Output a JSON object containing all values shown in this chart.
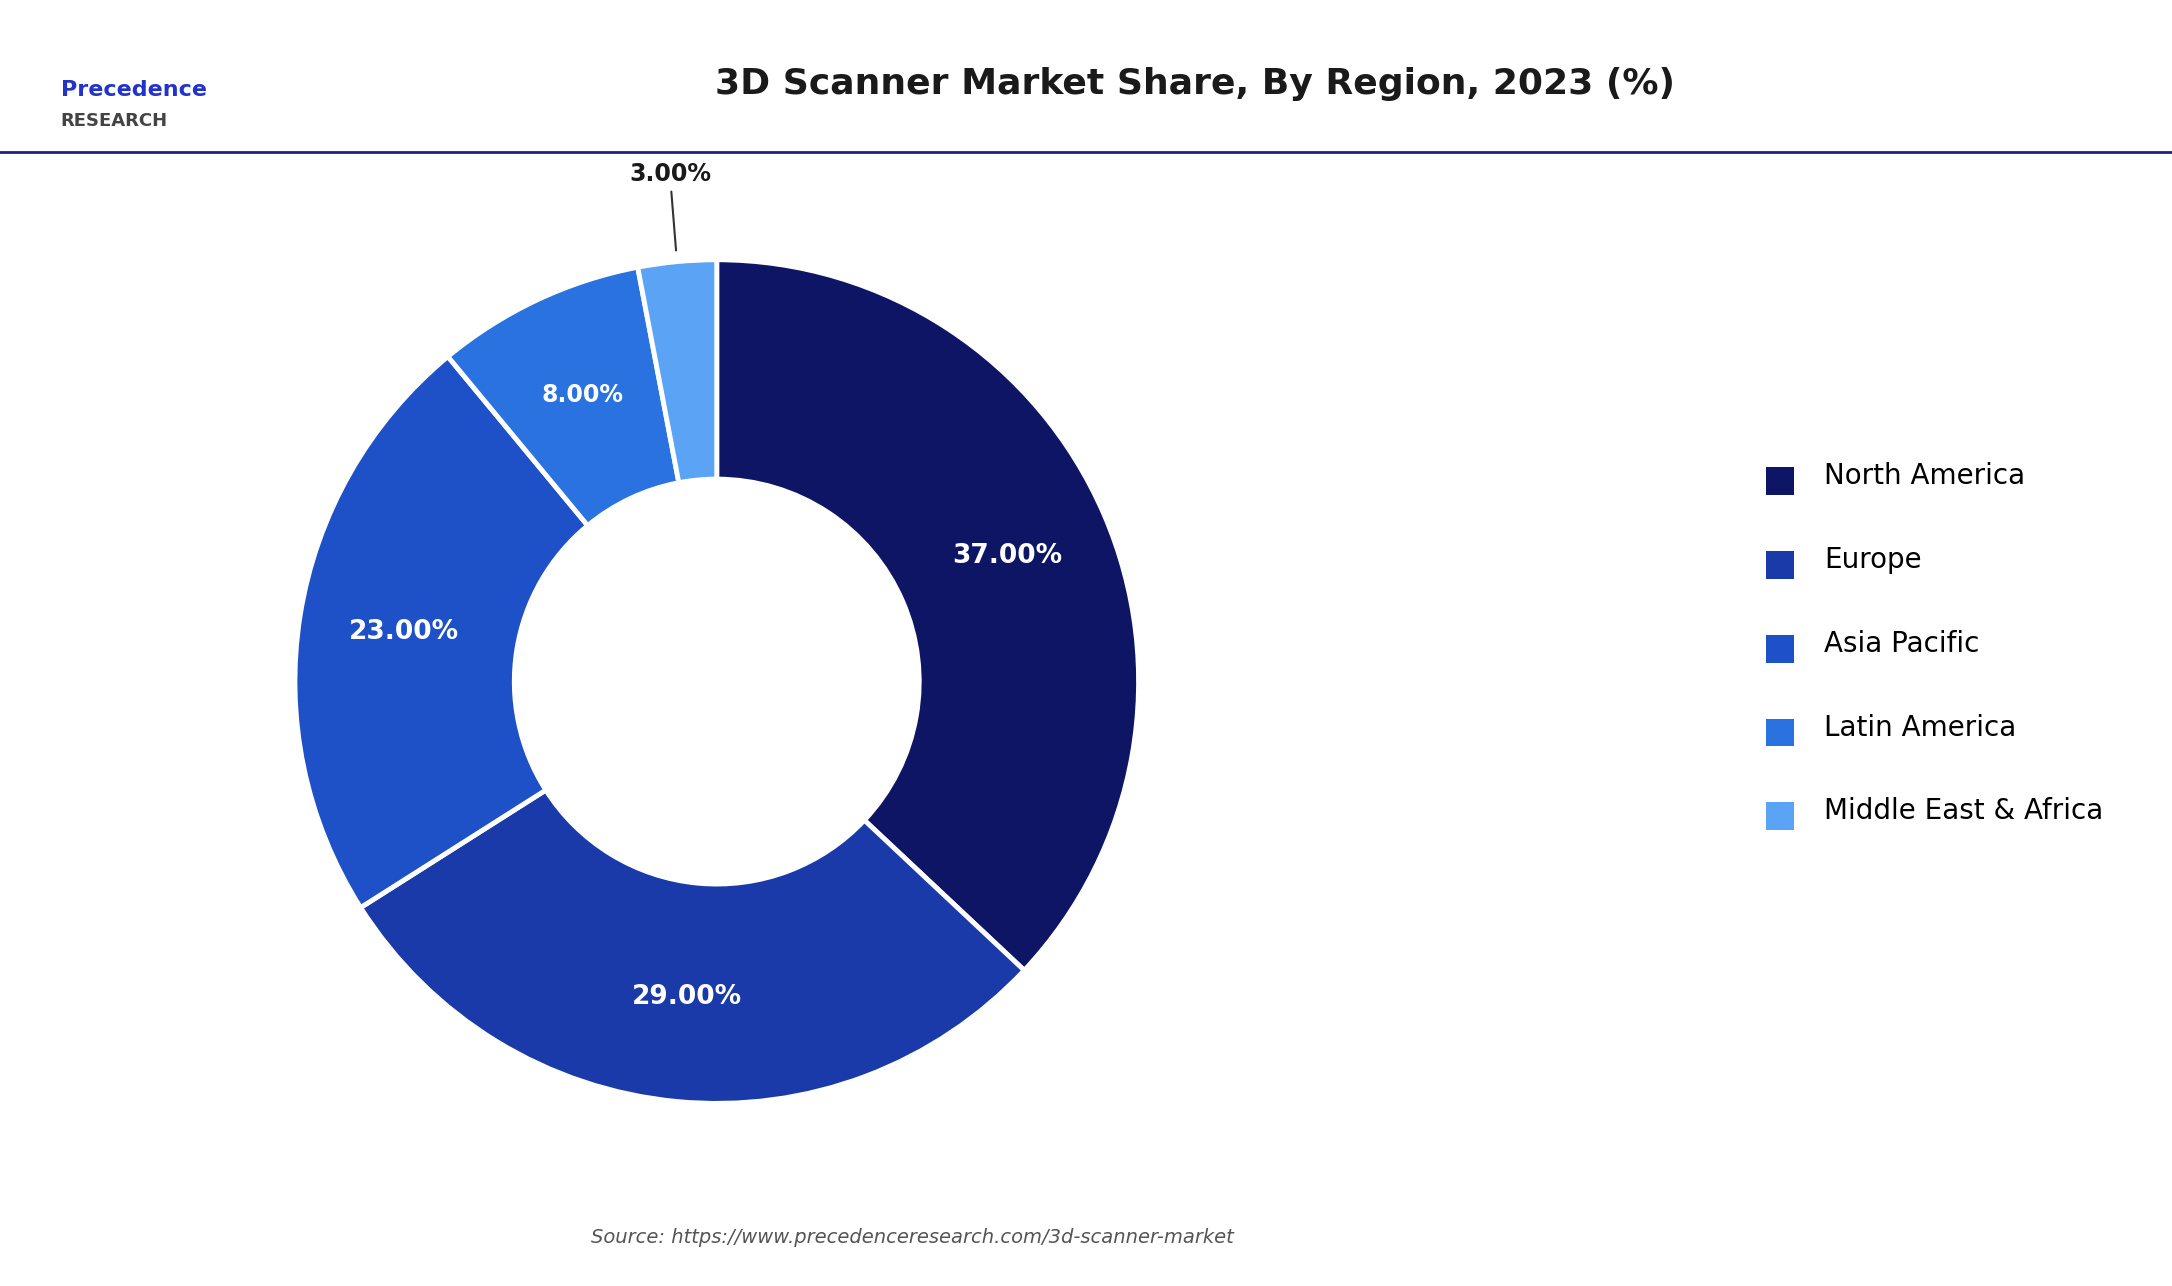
{
  "title": "3D Scanner Market Share, By Region, 2023 (%)",
  "labels": [
    "North America",
    "Europe",
    "Asia Pacific",
    "Latin America",
    "Middle East & Africa"
  ],
  "values": [
    37.0,
    29.0,
    23.0,
    8.0,
    3.0
  ],
  "colors": [
    "#0d1564",
    "#1a3aaa",
    "#1e50c8",
    "#2a72e0",
    "#5ba3f5"
  ],
  "pct_labels": [
    "37.00%",
    "29.00%",
    "23.00%",
    "8.00%",
    "3.00%"
  ],
  "source_text": "Source: https://www.precedenceresearch.com/3d-scanner-market",
  "background_color": "#ffffff",
  "title_fontsize": 26,
  "label_fontsize": 19,
  "legend_fontsize": 20,
  "source_fontsize": 14,
  "wedge_edge_color": "#ffffff",
  "logo_line1": "Precedence",
  "logo_line2": "RESEARCH"
}
